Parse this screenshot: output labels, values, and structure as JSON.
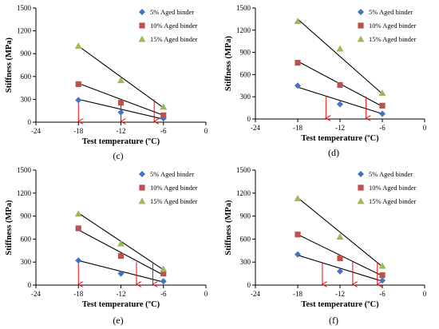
{
  "colors": {
    "series_5": "#4472C4",
    "series_10": "#C0504D",
    "series_15": "#9BBB59",
    "trend": "#000000",
    "arrow": "#FF0000"
  },
  "chart_data": [
    {
      "type": "scatter",
      "panel": "(c)",
      "xlabel": "Test temperature (ºC)",
      "ylabel": "Stiffness (MPa)",
      "xlim": [
        -24,
        0
      ],
      "ylim": [
        0,
        1500
      ],
      "xticks": [
        -24,
        -18,
        -12,
        -6,
        0
      ],
      "yticks": [
        0,
        300,
        600,
        900,
        1200,
        1500
      ],
      "legend": "top-right",
      "series": [
        {
          "name": "5% Aged binder",
          "marker": "diamond",
          "color": "#4472C4",
          "x": [
            -18,
            -12,
            -6
          ],
          "y": [
            290,
            130,
            50
          ],
          "trend": [
            [
              -18,
              300
            ],
            [
              -6,
              40
            ]
          ]
        },
        {
          "name": "10% Aged binder",
          "marker": "square",
          "color": "#C0504D",
          "x": [
            -18,
            -12,
            -6
          ],
          "y": [
            500,
            255,
            90
          ],
          "trend": [
            [
              -18,
              510
            ],
            [
              -6,
              90
            ]
          ]
        },
        {
          "name": "15% Aged binder",
          "marker": "triangle",
          "color": "#9BBB59",
          "x": [
            -18,
            -12,
            -6
          ],
          "y": [
            1000,
            550,
            200
          ],
          "trend": [
            [
              -18,
              1000
            ],
            [
              -6,
              190
            ]
          ]
        }
      ],
      "arrows": [
        {
          "x": -18,
          "y_from": 300,
          "y_to": 0
        },
        {
          "x": -12,
          "y_from": 300,
          "y_to": 0
        },
        {
          "x": -7.3,
          "y_from": 300,
          "y_to": 0
        }
      ]
    },
    {
      "type": "scatter",
      "panel": "(d)",
      "xlabel": "Test temperature (ºC)",
      "ylabel": "Stiffness (MPa)",
      "xlim": [
        -24,
        0
      ],
      "ylim": [
        0,
        1500
      ],
      "xticks": [
        -24,
        -18,
        -12,
        -6,
        0
      ],
      "yticks": [
        0,
        300,
        600,
        900,
        1200,
        1500
      ],
      "legend": "top-right",
      "series": [
        {
          "name": "5% Aged binder",
          "marker": "diamond",
          "color": "#4472C4",
          "x": [
            -18,
            -12,
            -6
          ],
          "y": [
            450,
            200,
            70
          ],
          "trend": [
            [
              -18,
              430
            ],
            [
              -6,
              70
            ]
          ]
        },
        {
          "name": "10% Aged binder",
          "marker": "square",
          "color": "#C0504D",
          "x": [
            -18,
            -12,
            -6
          ],
          "y": [
            760,
            460,
            180
          ],
          "trend": [
            [
              -18,
              780
            ],
            [
              -6,
              170
            ]
          ]
        },
        {
          "name": "15% Aged binder",
          "marker": "triangle",
          "color": "#9BBB59",
          "x": [
            -18,
            -12,
            -6
          ],
          "y": [
            1320,
            950,
            350
          ],
          "trend": [
            [
              -18,
              1350
            ],
            [
              -6,
              340
            ]
          ]
        }
      ],
      "arrows": [
        {
          "x": -14,
          "y_from": 300,
          "y_to": 0
        },
        {
          "x": -8.3,
          "y_from": 300,
          "y_to": 0
        }
      ]
    },
    {
      "type": "scatter",
      "panel": "(e)",
      "xlabel": "Test temperature (ºC)",
      "ylabel": "Stiffness (MPa)",
      "xlim": [
        -24,
        0
      ],
      "ylim": [
        0,
        1500
      ],
      "xticks": [
        -24,
        -18,
        -12,
        -6,
        0
      ],
      "yticks": [
        0,
        300,
        600,
        900,
        1200,
        1500
      ],
      "legend": "top-right",
      "series": [
        {
          "name": "5% Aged binder",
          "marker": "diamond",
          "color": "#4472C4",
          "x": [
            -18,
            -12,
            -6
          ],
          "y": [
            320,
            150,
            50
          ],
          "trend": [
            [
              -18,
              320
            ],
            [
              -6,
              40
            ]
          ]
        },
        {
          "name": "10% Aged binder",
          "marker": "square",
          "color": "#C0504D",
          "x": [
            -18,
            -12,
            -6
          ],
          "y": [
            740,
            380,
            150
          ],
          "trend": [
            [
              -18,
              720
            ],
            [
              -6,
              130
            ]
          ]
        },
        {
          "name": "15% Aged binder",
          "marker": "triangle",
          "color": "#9BBB59",
          "x": [
            -18,
            -12,
            -6
          ],
          "y": [
            930,
            540,
            210
          ],
          "trend": [
            [
              -18,
              940
            ],
            [
              -6,
              200
            ]
          ]
        }
      ],
      "arrows": [
        {
          "x": -18,
          "y_from": 300,
          "y_to": 0
        },
        {
          "x": -9.8,
          "y_from": 300,
          "y_to": 0
        },
        {
          "x": -7.5,
          "y_from": 300,
          "y_to": 0
        }
      ]
    },
    {
      "type": "scatter",
      "panel": "(f)",
      "xlabel": "Test temperature (ºC)",
      "ylabel": "Stiffness (MPa)",
      "xlim": [
        -24,
        0
      ],
      "ylim": [
        0,
        1500
      ],
      "xticks": [
        -24,
        -18,
        -12,
        -6,
        0
      ],
      "yticks": [
        0,
        300,
        600,
        900,
        1200,
        1500
      ],
      "legend": "top-right",
      "series": [
        {
          "name": "5% Aged binder",
          "marker": "diamond",
          "color": "#4472C4",
          "x": [
            -18,
            -12,
            -6
          ],
          "y": [
            400,
            180,
            60
          ],
          "trend": [
            [
              -18,
              390
            ],
            [
              -6,
              50
            ]
          ]
        },
        {
          "name": "10% Aged binder",
          "marker": "square",
          "color": "#C0504D",
          "x": [
            -18,
            -12,
            -6
          ],
          "y": [
            660,
            350,
            130
          ],
          "trend": [
            [
              -18,
              660
            ],
            [
              -6,
              120
            ]
          ]
        },
        {
          "name": "15% Aged binder",
          "marker": "triangle",
          "color": "#9BBB59",
          "x": [
            -18,
            -12,
            -6
          ],
          "y": [
            1130,
            630,
            250
          ],
          "trend": [
            [
              -18,
              1140
            ],
            [
              -6,
              240
            ]
          ]
        }
      ],
      "arrows": [
        {
          "x": -14.5,
          "y_from": 300,
          "y_to": 0
        },
        {
          "x": -10.2,
          "y_from": 300,
          "y_to": 0
        },
        {
          "x": -6.7,
          "y_from": 300,
          "y_to": 0
        }
      ]
    }
  ]
}
